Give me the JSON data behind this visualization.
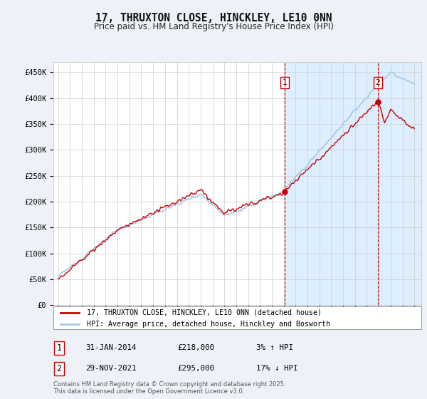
{
  "title": "17, THRUXTON CLOSE, HINCKLEY, LE10 0NN",
  "subtitle": "Price paid vs. HM Land Registry's House Price Index (HPI)",
  "ylim": [
    0,
    470000
  ],
  "yticks": [
    0,
    50000,
    100000,
    150000,
    200000,
    250000,
    300000,
    350000,
    400000,
    450000
  ],
  "ytick_labels": [
    "£0",
    "£50K",
    "£100K",
    "£150K",
    "£200K",
    "£250K",
    "£300K",
    "£350K",
    "£400K",
    "£450K"
  ],
  "hpi_color": "#a8c8e8",
  "price_color": "#cc0000",
  "vline_color": "#cc0000",
  "grid_color": "#cccccc",
  "bg_color": "#eef2f8",
  "plot_bg": "#ffffff",
  "shade_color": "#ddeeff",
  "legend_label1": "17, THRUXTON CLOSE, HINCKLEY, LE10 0NN (detached house)",
  "legend_label2": "HPI: Average price, detached house, Hinckley and Bosworth",
  "annotation1_label": "1",
  "annotation1_date": "31-JAN-2014",
  "annotation1_price": "£218,000",
  "annotation1_hpi": "3% ↑ HPI",
  "annotation2_label": "2",
  "annotation2_date": "29-NOV-2021",
  "annotation2_price": "£295,000",
  "annotation2_hpi": "17% ↓ HPI",
  "footer": "Contains HM Land Registry data © Crown copyright and database right 2025.\nThis data is licensed under the Open Government Licence v3.0.",
  "sale1_year": 2014.08,
  "sale2_year": 2021.92
}
